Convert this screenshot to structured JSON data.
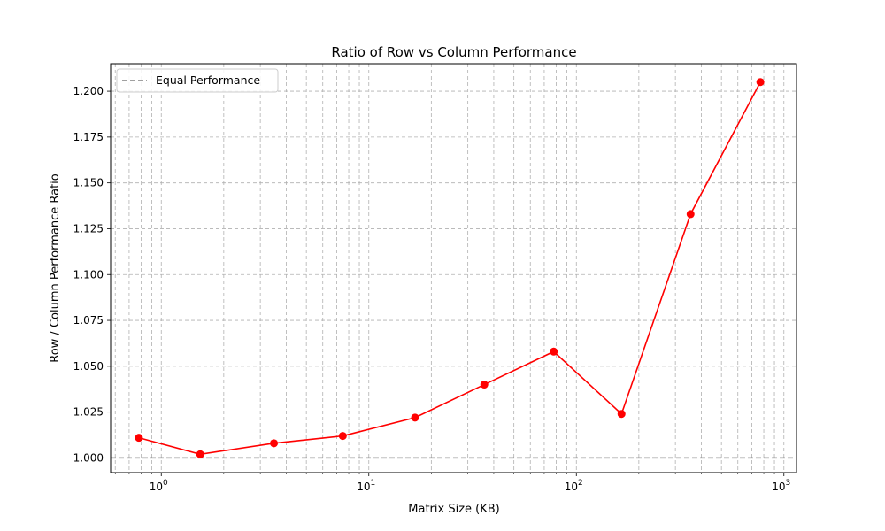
{
  "chart_data": {
    "type": "line",
    "title": "Ratio of Row vs Column Performance",
    "xlabel": "Matrix Size (KB)",
    "ylabel": "Row / Column Performance Ratio",
    "xscale": "log",
    "xlim": [
      0.57,
      1150
    ],
    "ylim": [
      0.992,
      1.215
    ],
    "grid": true,
    "legend_position": "top-left",
    "x_ticks": [
      {
        "value": 1,
        "base": "10",
        "exp": "0"
      },
      {
        "value": 10,
        "base": "10",
        "exp": "1"
      },
      {
        "value": 100,
        "base": "10",
        "exp": "2"
      },
      {
        "value": 1000,
        "base": "10",
        "exp": "3"
      }
    ],
    "y_ticks": [
      1.0,
      1.025,
      1.05,
      1.075,
      1.1,
      1.125,
      1.15,
      1.175,
      1.2
    ],
    "y_tick_labels": [
      "1.000",
      "1.025",
      "1.050",
      "1.075",
      "1.100",
      "1.125",
      "1.150",
      "1.175",
      "1.200"
    ],
    "series": [
      {
        "color": "#ff0000",
        "marker": "circle",
        "x": [
          0.78,
          1.54,
          3.49,
          7.49,
          16.7,
          36.0,
          77.8,
          165,
          355,
          770
        ],
        "y": [
          1.011,
          1.002,
          1.008,
          1.012,
          1.022,
          1.04,
          1.058,
          1.024,
          1.133,
          1.205
        ]
      }
    ],
    "reference_lines": [
      {
        "name": "Equal Performance",
        "y": 1.0,
        "color": "#808080",
        "style": "dashed"
      }
    ]
  }
}
